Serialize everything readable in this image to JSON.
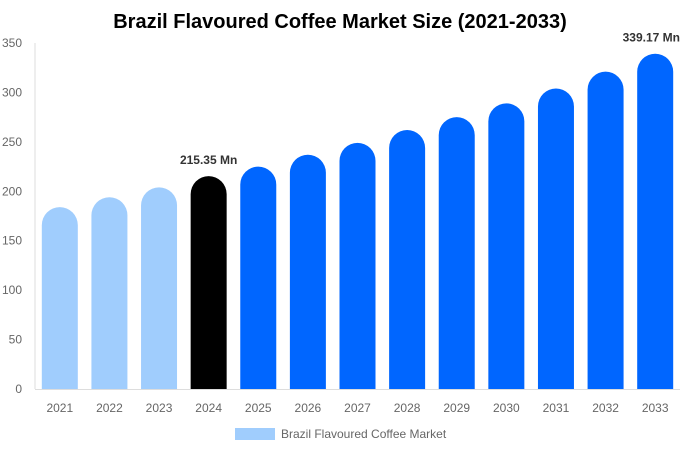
{
  "chart_data": {
    "type": "bar",
    "title": "Brazil Flavoured Coffee Market Size (2021-2033)",
    "xlabel": "",
    "ylabel": "",
    "ylim": [
      0,
      350
    ],
    "yticks": [
      0,
      50,
      100,
      150,
      200,
      250,
      300,
      350
    ],
    "grid": false,
    "legend_position": "bottom",
    "categories": [
      "2021",
      "2022",
      "2023",
      "2024",
      "2025",
      "2026",
      "2027",
      "2028",
      "2029",
      "2030",
      "2031",
      "2032",
      "2033"
    ],
    "series": [
      {
        "name": "Brazil Flavoured Coffee Market",
        "values": [
          184,
          194,
          204,
          215.35,
          225,
          237,
          249,
          262,
          275,
          289,
          304,
          321,
          339.17
        ]
      }
    ],
    "bar_colors": [
      "#a0cdfd",
      "#a0cdfd",
      "#a0cdfd",
      "#000000",
      "#0066ff",
      "#0066ff",
      "#0066ff",
      "#0066ff",
      "#0066ff",
      "#0066ff",
      "#0066ff",
      "#0066ff",
      "#0066ff"
    ],
    "legend_color": "#a0cdfd",
    "annotations": [
      {
        "category": "2024",
        "text": "215.35 Mn"
      },
      {
        "category": "2033",
        "text": "339.17 Mn"
      }
    ]
  }
}
